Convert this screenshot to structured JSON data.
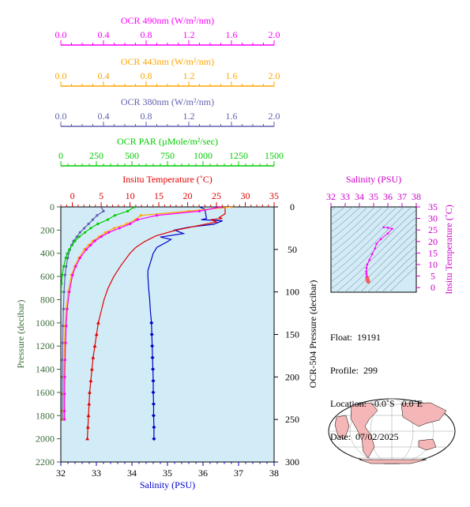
{
  "float_info": {
    "float": "Float:  19191",
    "profile": "Profile:  299",
    "location": "Location:  -0.0˚S   0.0˚E",
    "date": "Date:  07/02/2025"
  },
  "colors": {
    "ocr490": "#ff00ff",
    "ocr443": "#ffa500",
    "ocr380": "#6060b0",
    "par": "#00cc00",
    "temperature": "#e00000",
    "salinity": "#0000cc",
    "pressure_axis": "#3a6b3a",
    "plot_bg": "#d2ecf7"
  },
  "chart_data": [
    {
      "type": "line",
      "title": "",
      "ylabel": "Pressure (decibar)",
      "ylim": [
        2200,
        0
      ],
      "yticks": [
        "0",
        "200",
        "400",
        "600",
        "800",
        "1000",
        "1200",
        "1400",
        "1600",
        "1800",
        "2000",
        "2200"
      ],
      "y2label": "OCR-504 Pressure (decibar)",
      "y2lim": [
        300,
        0
      ],
      "y2ticks": [
        "0",
        "50",
        "100",
        "150",
        "200",
        "250",
        "300"
      ],
      "axes": [
        {
          "key": "ocr490",
          "label": "OCR 490nm (W/m²/nm)",
          "lim": [
            0,
            2
          ],
          "ticks": [
            "0.0",
            "0.4",
            "0.8",
            "1.2",
            "1.6",
            "2.0"
          ]
        },
        {
          "key": "ocr443",
          "label": "OCR 443nm (W/m²/nm)",
          "lim": [
            0,
            2
          ],
          "ticks": [
            "0.0",
            "0.4",
            "0.8",
            "1.2",
            "1.6",
            "2.0"
          ]
        },
        {
          "key": "ocr380",
          "label": "OCR 380nm (W/m²/nm)",
          "lim": [
            0,
            2
          ],
          "ticks": [
            "0.0",
            "0.4",
            "0.8",
            "1.2",
            "1.6",
            "2.0"
          ]
        },
        {
          "key": "par",
          "label": "OCR PAR (µMole/m²/sec)",
          "lim": [
            0,
            1500
          ],
          "ticks": [
            "0",
            "250",
            "500",
            "750",
            "1000",
            "1250",
            "1500"
          ]
        },
        {
          "key": "temperature",
          "label": "Insitu Temperature (˚C)",
          "lim": [
            -2,
            35
          ],
          "ticks": [
            "0",
            "5",
            "10",
            "15",
            "20",
            "25",
            "30",
            "35"
          ]
        },
        {
          "key": "salinity",
          "label": "Salinity (PSU)",
          "lim": [
            32,
            38
          ],
          "ticks": [
            "32",
            "33",
            "34",
            "35",
            "36",
            "37",
            "38"
          ]
        }
      ],
      "series": [
        {
          "key": "salinity",
          "pressure": [
            0,
            20,
            100,
            110,
            120,
            150,
            175,
            200,
            230,
            260,
            280,
            300,
            350,
            400,
            450,
            500,
            550,
            600,
            700,
            800,
            900,
            1000,
            1100,
            1200,
            1300,
            1400,
            1500,
            1600,
            1700,
            1800,
            1900,
            2000
          ],
          "values": [
            35.9,
            36.05,
            36.1,
            35.95,
            36.55,
            36.3,
            35.6,
            35.2,
            35.45,
            34.8,
            35.1,
            35.0,
            34.7,
            34.6,
            34.55,
            34.5,
            34.45,
            34.45,
            34.47,
            34.5,
            34.52,
            34.55,
            34.56,
            34.57,
            34.58,
            34.59,
            34.6,
            34.6,
            34.61,
            34.61,
            34.62,
            34.62
          ]
        },
        {
          "key": "temperature",
          "pressure": [
            0,
            60,
            90,
            100,
            110,
            130,
            150,
            200,
            250,
            300,
            350,
            400,
            500,
            600,
            700,
            800,
            900,
            1000,
            1100,
            1200,
            1300,
            1400,
            1500,
            1600,
            1700,
            1800,
            1900,
            2000
          ],
          "values": [
            26.5,
            26.5,
            25.5,
            26,
            24,
            25,
            23,
            18,
            14.5,
            12.5,
            11,
            10,
            8.5,
            7.2,
            6.2,
            5.5,
            5,
            4.5,
            4.2,
            3.9,
            3.6,
            3.4,
            3.2,
            3.0,
            2.9,
            2.8,
            2.7,
            2.6
          ]
        },
        {
          "key": "ocr380",
          "ocr_pressure": [
            0,
            5,
            10,
            15,
            20,
            25,
            30,
            35,
            40,
            45,
            50,
            60,
            70,
            80,
            100,
            120,
            140,
            160,
            180,
            200,
            220,
            240,
            250
          ],
          "values": [
            0.38,
            0.4,
            0.34,
            0.3,
            0.26,
            0.22,
            0.18,
            0.15,
            0.12,
            0.1,
            0.085,
            0.065,
            0.05,
            0.04,
            0.03,
            0.025,
            0.02,
            0.018,
            0.016,
            0.015,
            0.014,
            0.013,
            0.013
          ]
        },
        {
          "key": "par",
          "ocr_pressure": [
            0,
            5,
            10,
            15,
            20,
            25,
            30,
            35,
            40,
            45,
            50,
            55,
            60,
            70,
            80,
            90,
            100
          ],
          "values": [
            520,
            470,
            380,
            330,
            260,
            210,
            170,
            130,
            100,
            80,
            60,
            45,
            35,
            20,
            10,
            5,
            2
          ]
        },
        {
          "key": "ocr443",
          "ocr_pressure": [
            0,
            5,
            10,
            15,
            20,
            25,
            30,
            35,
            40,
            45,
            50,
            60,
            70,
            80,
            100,
            120,
            140,
            160,
            180,
            200,
            220,
            240,
            250
          ],
          "values": [
            1.6,
            1.2,
            0.75,
            0.7,
            0.62,
            0.5,
            0.42,
            0.36,
            0.3,
            0.26,
            0.22,
            0.17,
            0.13,
            0.1,
            0.07,
            0.05,
            0.04,
            0.035,
            0.03,
            0.028,
            0.026,
            0.025,
            0.025
          ]
        },
        {
          "key": "ocr490",
          "ocr_pressure": [
            0,
            5,
            10,
            15,
            20,
            25,
            30,
            35,
            40,
            45,
            50,
            60,
            70,
            80,
            100,
            120,
            140,
            160,
            180,
            200,
            220,
            240,
            250
          ],
          "values": [
            1.5,
            1.3,
            0.9,
            0.72,
            0.65,
            0.55,
            0.45,
            0.38,
            0.32,
            0.28,
            0.24,
            0.18,
            0.14,
            0.11,
            0.08,
            0.06,
            0.05,
            0.045,
            0.04,
            0.037,
            0.035,
            0.034,
            0.034
          ]
        }
      ]
    },
    {
      "type": "scatter",
      "title": "",
      "xlabel": "Salinity (PSU)",
      "xlim": [
        32,
        38
      ],
      "xticks": [
        "32",
        "33",
        "34",
        "35",
        "36",
        "37",
        "38"
      ],
      "ylabel": "Insitu Temperature (˚C)",
      "ylim": [
        -2,
        35
      ],
      "yticks": [
        "0",
        "5",
        "10",
        "15",
        "20",
        "25",
        "30",
        "35"
      ],
      "series": [
        {
          "key": "ts",
          "salinity": [
            34.62,
            34.6,
            34.57,
            34.55,
            34.52,
            34.5,
            34.48,
            34.5,
            34.55,
            34.7,
            34.9,
            35.1,
            35.2,
            35.5,
            36.0,
            36.3,
            36.0,
            35.7
          ],
          "temperature": [
            2.6,
            3.0,
            3.5,
            4.2,
            5.0,
            6.0,
            7.0,
            8.5,
            10,
            12,
            14.5,
            17,
            19,
            21,
            23.5,
            25.5,
            26.0,
            26.2
          ]
        }
      ]
    }
  ],
  "map": {
    "label": ""
  }
}
